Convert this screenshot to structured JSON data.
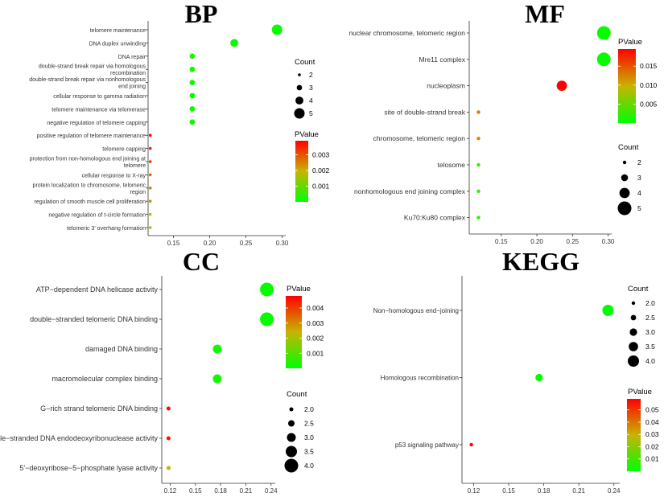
{
  "chart_data": [
    {
      "id": "bp",
      "type": "scatter",
      "title": "BP",
      "xlabel": "",
      "ylabel": "",
      "xlim": [
        0.115,
        0.305
      ],
      "xticks": [
        0.15,
        0.2,
        0.25,
        0.3
      ],
      "xtick_labels": [
        "0.15",
        "0.20",
        "0.25",
        "0.30"
      ],
      "points": [
        {
          "label": "telomere maintenance",
          "x": 0.293,
          "count": 5,
          "pvalue": 0.0001
        },
        {
          "label": "DNA duplex unwinding",
          "x": 0.234,
          "count": 4,
          "pvalue": 0.0001
        },
        {
          "label": "DNA repair",
          "x": 0.176,
          "count": 3,
          "pvalue": 0.0003
        },
        {
          "label": "double-strand break repair via homologous recombination",
          "x": 0.176,
          "count": 3,
          "pvalue": 0.0002
        },
        {
          "label": "double-strand break repair via nonhomologous end joining",
          "x": 0.176,
          "count": 3,
          "pvalue": 0.0002
        },
        {
          "label": "cellular response to gamma radiation",
          "x": 0.176,
          "count": 3,
          "pvalue": 0.0001
        },
        {
          "label": "telomere maintenance via telomerase",
          "x": 0.176,
          "count": 3,
          "pvalue": 0.0001
        },
        {
          "label": "negative regulation of telomere capping",
          "x": 0.176,
          "count": 3,
          "pvalue": 0.0001
        },
        {
          "label": "positive regulation of telomere maintenance",
          "x": 0.118,
          "count": 2,
          "pvalue": 0.0038
        },
        {
          "label": "telomere capping",
          "x": 0.118,
          "count": 2,
          "pvalue": 0.0036
        },
        {
          "label": "protection from non-homologous end joining at telomere",
          "x": 0.118,
          "count": 2,
          "pvalue": 0.0033
        },
        {
          "label": "cellular response to X-ray",
          "x": 0.118,
          "count": 2,
          "pvalue": 0.0028
        },
        {
          "label": "protein localization to chromosome, telomeric region",
          "x": 0.118,
          "count": 2,
          "pvalue": 0.0026
        },
        {
          "label": "regulation of smooth muscle cell proliferation",
          "x": 0.118,
          "count": 2,
          "pvalue": 0.0024
        },
        {
          "label": "negative regulation of t-circle formation",
          "x": 0.118,
          "count": 2,
          "pvalue": 0.0018
        },
        {
          "label": "telomeric 3' overhang formation",
          "x": 0.118,
          "count": 2,
          "pvalue": 0.0016
        }
      ],
      "pvalue_legend": {
        "title": "PValue",
        "min": 0,
        "max": 0.0039,
        "ticks": [
          0.001,
          0.002,
          0.003
        ],
        "tick_labels": [
          "0.001",
          "0.002",
          "0.003"
        ]
      },
      "count_legend": {
        "title": "Count",
        "values": [
          2,
          3,
          4,
          5
        ],
        "labels": [
          "2",
          "3",
          "4",
          "5"
        ],
        "min": 2,
        "max": 5
      }
    },
    {
      "id": "mf",
      "type": "scatter",
      "title": "MF",
      "xlabel": "",
      "ylabel": "",
      "xlim": [
        0.105,
        0.305
      ],
      "xticks": [
        0.15,
        0.2,
        0.25,
        0.3
      ],
      "xtick_labels": [
        "0.15",
        "0.20",
        "0.25",
        "0.30"
      ],
      "points": [
        {
          "label": "nuclear chromosome, telomeric region",
          "x": 0.294,
          "count": 5,
          "pvalue": 0.0003
        },
        {
          "label": "Mre11 complex",
          "x": 0.294,
          "count": 5,
          "pvalue": 0.0004
        },
        {
          "label": "nucleoplasm",
          "x": 0.235,
          "count": 4,
          "pvalue": 0.0195
        },
        {
          "label": "site of double-strand break",
          "x": 0.118,
          "count": 2,
          "pvalue": 0.013
        },
        {
          "label": "chromosome, telomeric region",
          "x": 0.118,
          "count": 2,
          "pvalue": 0.012
        },
        {
          "label": "telosome",
          "x": 0.118,
          "count": 2,
          "pvalue": 0.0028
        },
        {
          "label": "nonhomologous end joining complex",
          "x": 0.118,
          "count": 2,
          "pvalue": 0.0025
        },
        {
          "label": "Ku70:Ku80 complex",
          "x": 0.118,
          "count": 2,
          "pvalue": 0.0022
        }
      ],
      "pvalue_legend": {
        "title": "PValue",
        "min": 0,
        "max": 0.0195,
        "ticks": [
          0.005,
          0.01,
          0.015
        ],
        "tick_labels": [
          "0.005",
          "0.010",
          "0.015"
        ]
      },
      "count_legend": {
        "title": "Count",
        "values": [
          2,
          3,
          4,
          5
        ],
        "labels": [
          "2",
          "3",
          "4",
          "5"
        ],
        "min": 2,
        "max": 5
      }
    },
    {
      "id": "cc",
      "type": "scatter",
      "title": "CC",
      "xlabel": "",
      "ylabel": "",
      "xlim": [
        0.11,
        0.245
      ],
      "xticks": [
        0.12,
        0.15,
        0.18,
        0.21,
        0.24
      ],
      "xtick_labels": [
        "0.12",
        "0.15",
        "0.18",
        "0.21",
        "0.24"
      ],
      "points": [
        {
          "label": "ATP−dependent DNA helicase activity",
          "x": 0.235,
          "count": 4,
          "pvalue": 0.0001
        },
        {
          "label": "double−stranded telomeric DNA binding",
          "x": 0.235,
          "count": 4,
          "pvalue": 0.0001
        },
        {
          "label": "damaged DNA binding",
          "x": 0.176,
          "count": 3,
          "pvalue": 0.0002
        },
        {
          "label": "macromolecular complex binding",
          "x": 0.176,
          "count": 3,
          "pvalue": 0.0002
        },
        {
          "label": "G−rich strand telomeric DNA binding",
          "x": 0.118,
          "count": 2,
          "pvalue": 0.0047
        },
        {
          "label": "single−stranded DNA endodeoxyribonuclease activity",
          "x": 0.118,
          "count": 2,
          "pvalue": 0.0046
        },
        {
          "label": "5'−deoxyribose−5−phosphate lyase activity",
          "x": 0.118,
          "count": 2,
          "pvalue": 0.0022
        }
      ],
      "pvalue_legend": {
        "title": "PValue",
        "min": 0,
        "max": 0.0048,
        "ticks": [
          0.001,
          0.002,
          0.003,
          0.004
        ],
        "tick_labels": [
          "0.001",
          "0.002",
          "0.003",
          "0.004"
        ]
      },
      "count_legend": {
        "title": "Count",
        "values": [
          2.0,
          2.5,
          3.0,
          3.5,
          4.0
        ],
        "labels": [
          "2.0",
          "2.5",
          "3.0",
          "3.5",
          "4.0"
        ],
        "min": 2,
        "max": 4
      }
    },
    {
      "id": "kegg",
      "type": "scatter",
      "title": "KEGG",
      "xlabel": "",
      "ylabel": "",
      "xlim": [
        0.11,
        0.245
      ],
      "xticks": [
        0.12,
        0.15,
        0.18,
        0.21,
        0.24
      ],
      "xtick_labels": [
        "0.12",
        "0.15",
        "0.18",
        "0.21",
        "0.24"
      ],
      "points": [
        {
          "label": "Non−homologous end−joining",
          "x": 0.235,
          "count": 4,
          "pvalue": 0.0002
        },
        {
          "label": "Homologous recombination",
          "x": 0.176,
          "count": 3,
          "pvalue": 0.0008
        },
        {
          "label": "p53 signaling pathway",
          "x": 0.118,
          "count": 2,
          "pvalue": 0.058
        }
      ],
      "pvalue_legend": {
        "title": "PValue",
        "min": 0,
        "max": 0.059,
        "ticks": [
          0.01,
          0.02,
          0.03,
          0.04,
          0.05
        ],
        "tick_labels": [
          "0.01",
          "0.02",
          "0.03",
          "0.04",
          "0.05"
        ]
      },
      "count_legend": {
        "title": "Count",
        "values": [
          2.0,
          2.5,
          3.0,
          3.5,
          4.0
        ],
        "labels": [
          "2.0",
          "2.5",
          "3.0",
          "3.5",
          "4.0"
        ],
        "min": 2,
        "max": 4
      }
    }
  ],
  "colors": {
    "low": "#00ff00",
    "mid": "#c8b400",
    "high": "#ff0000",
    "axis": "#333333",
    "dot_legend": "#000000"
  }
}
